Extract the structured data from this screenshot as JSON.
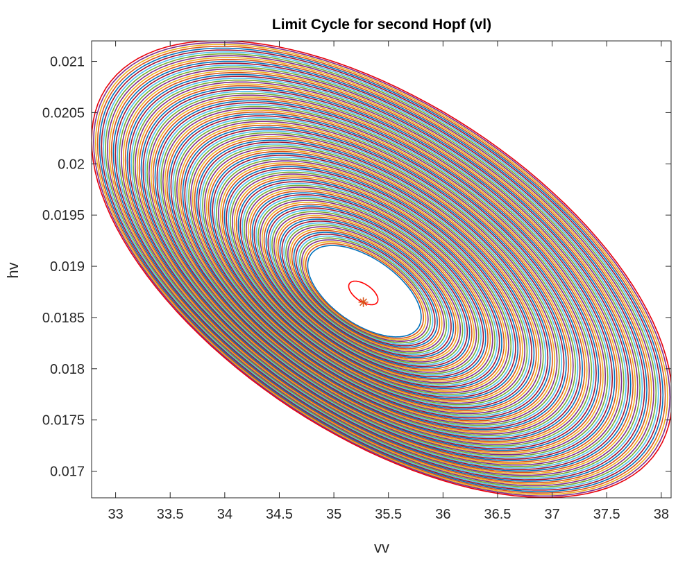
{
  "chart_data": {
    "type": "line",
    "title": "Limit Cycle for second Hopf (vl)",
    "xlabel": "vv",
    "ylabel": "hv",
    "xlim": [
      32.78,
      38.09
    ],
    "ylim": [
      0.01674,
      0.0212
    ],
    "xticks": [
      33,
      33.5,
      34,
      34.5,
      35,
      35.5,
      36,
      36.5,
      37,
      37.5,
      38
    ],
    "xtick_labels": [
      "33",
      "33.5",
      "34",
      "34.5",
      "35",
      "35.5",
      "36",
      "36.5",
      "37",
      "37.5",
      "38"
    ],
    "yticks": [
      0.017,
      0.0175,
      0.018,
      0.0185,
      0.019,
      0.0195,
      0.02,
      0.0205,
      0.021
    ],
    "ytick_labels": [
      "0.017",
      "0.0175",
      "0.018",
      "0.0185",
      "0.019",
      "0.0195",
      "0.02",
      "0.0205",
      "0.021"
    ],
    "grid": false,
    "cycle_family": {
      "count": 110,
      "colors": [
        "#0072BD",
        "#D95319",
        "#EDB120",
        "#7E2F8E",
        "#77AC30",
        "#4DBEEE",
        "#A2142F"
      ],
      "outer_color": "#E8000B",
      "inner": {
        "center": [
          35.28,
          0.018757
        ],
        "amplitude_vv": 0.52,
        "amplitude_hv": 0.000446,
        "phase": 2.17
      },
      "outer": {
        "center": [
          35.44,
          0.018973
        ],
        "amplitude_vv": 2.66,
        "amplitude_hv": 0.00223,
        "phase": 2.17
      }
    },
    "small_cycle": {
      "center": [
        35.27,
        0.01874
      ],
      "amplitude_vv": 0.134,
      "amplitude_hv": 0.000115,
      "phase": 2.17,
      "color": "#FF0000"
    },
    "equilibrium": {
      "vv": 35.27,
      "hv": 0.01865,
      "marker": "asterisk",
      "color": "#D95319"
    }
  }
}
